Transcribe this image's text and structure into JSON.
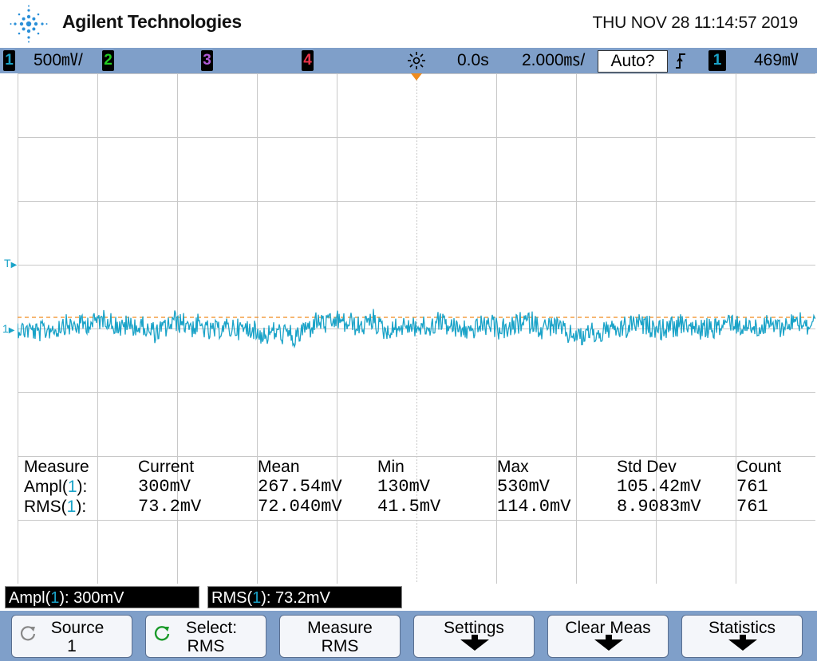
{
  "header": {
    "brand": "Agilent Technologies",
    "datetime": "THU NOV 28 11:14:57 2019",
    "logo_icon": "agilent-spark-icon"
  },
  "status_bar": {
    "channels": [
      {
        "num": "1",
        "scale": "500㎷/",
        "color": "#1aa3c8"
      },
      {
        "num": "2",
        "scale": "",
        "color": "#22cc22"
      },
      {
        "num": "3",
        "scale": "",
        "color": "#b05bd8"
      },
      {
        "num": "4",
        "scale": "",
        "color": "#e8334a"
      }
    ],
    "trigger_icon": "trigger-sun-icon",
    "time_delay": "0.0s",
    "time_scale": "2.000㎳/",
    "trigger_mode": "Auto?",
    "trigger_slope_icon": "rising-edge-icon",
    "trigger_source": "1",
    "trigger_level": "469㎷"
  },
  "graticule": {
    "divisions_x": 10,
    "divisions_y": 8,
    "trigger_marker": "T",
    "channel_marker": "1"
  },
  "measurements": {
    "headers": [
      "Measure",
      "Current",
      "Mean",
      "Min",
      "Max",
      "Std Dev",
      "Count"
    ],
    "rows": [
      {
        "name": "Ampl(",
        "src": "1",
        "close": "):",
        "current": "300mV",
        "mean": "267.54mV",
        "min": "130mV",
        "max": "530mV",
        "std_dev": "105.42mV",
        "count": "761"
      },
      {
        "name": "RMS(",
        "src": "1",
        "close": "):",
        "current": "73.2mV",
        "mean": "72.040mV",
        "min": "41.5mV",
        "max": "114.0mV",
        "std_dev": "8.9083mV",
        "count": "761"
      }
    ]
  },
  "readouts": [
    {
      "name": "Ampl(",
      "src": "1",
      "rest": "): 300mV"
    },
    {
      "name": "RMS(",
      "src": "1",
      "rest": "): 73.2mV"
    }
  ],
  "softkeys": [
    {
      "line1": "Source",
      "line2": "1",
      "icon": "rotate-knob-icon"
    },
    {
      "line1": "Select:",
      "line2": "RMS",
      "icon": "entry-knob-icon"
    },
    {
      "line1": "Measure",
      "line2": "RMS"
    },
    {
      "line1": "Settings",
      "line2": ""
    },
    {
      "line1": "Clear Meas",
      "line2": ""
    },
    {
      "line1": "Statistics",
      "line2": ""
    }
  ],
  "colors": {
    "trace": "#1aa3c8",
    "bar": "#7f9fc9",
    "grid": "#c8c8c8",
    "trigger_line": "#f08c1e"
  }
}
